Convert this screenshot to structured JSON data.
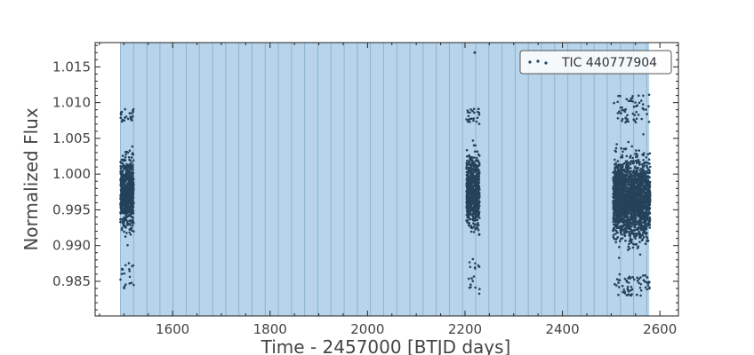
{
  "chart_data": {
    "type": "scatter",
    "title": "",
    "xlabel": "Time - 2457000 [BTJD days]",
    "ylabel": "Normalized Flux",
    "xlim": [
      1441,
      2638
    ],
    "ylim": [
      0.98015,
      1.0184
    ],
    "xticks": [
      1600,
      1800,
      2000,
      2200,
      2400,
      2600
    ],
    "xtick_labels": [
      "1600",
      "1800",
      "2000",
      "2200",
      "2400",
      "2600"
    ],
    "yticks": [
      0.985,
      0.99,
      0.995,
      1.0,
      1.005,
      1.01,
      1.015
    ],
    "ytick_labels": [
      "0.985",
      "0.990",
      "0.995",
      "1.000",
      "1.005",
      "1.010",
      "1.015"
    ],
    "grid": false,
    "legend": {
      "label": "TIC 440777904",
      "position": "top-right"
    },
    "shaded_region": {
      "x_start": 1493,
      "x_end": 2578,
      "line_spacing": 27
    },
    "series": [
      {
        "name": "TIC 440777904",
        "color": "#24435a",
        "segments": [
          {
            "x_start": 1493,
            "x_end": 1520,
            "core_low": 0.9877,
            "core_high": 1.0072,
            "tail_low": 0.984,
            "tail_high": 1.0092
          },
          {
            "x_start": 2203,
            "x_end": 2230,
            "core_low": 0.9883,
            "core_high": 1.007,
            "tail_low": 0.983,
            "tail_high": 1.0092
          },
          {
            "x_start": 2504,
            "x_end": 2580,
            "core_low": 0.986,
            "core_high": 1.0072,
            "tail_low": 0.983,
            "tail_high": 1.0112
          }
        ],
        "outliers": [
          {
            "x": 2220,
            "y": 1.017
          }
        ]
      }
    ],
    "colors": {
      "shade": "#b7d4ea",
      "shade_line": "#7fa8ca",
      "points": "#24435a",
      "axis": "#222222",
      "text": "#444444"
    }
  }
}
